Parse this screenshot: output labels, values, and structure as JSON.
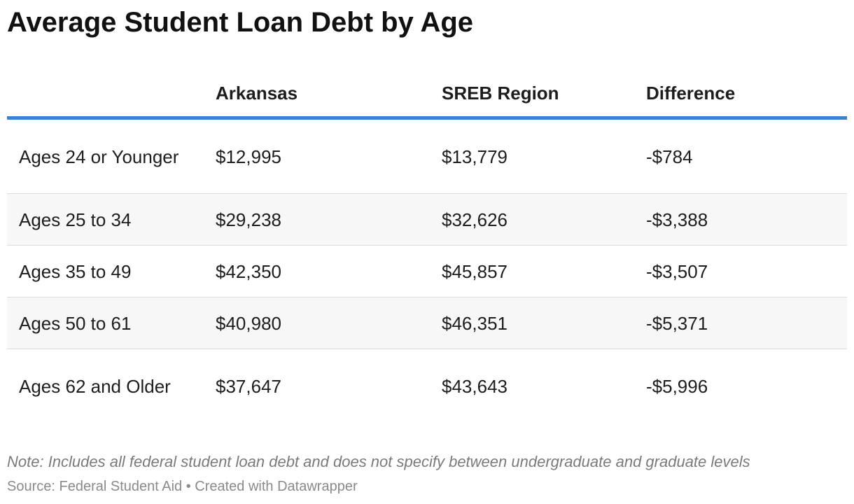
{
  "header": {
    "title": "Average Student Loan Debt by Age"
  },
  "table": {
    "columns": [
      "",
      "Arkansas",
      "SREB Region",
      "Difference"
    ],
    "rows": [
      [
        "Ages 24 or Younger",
        "$12,995",
        "$13,779",
        "-$784"
      ],
      [
        "Ages 25 to 34",
        "$29,238",
        "$32,626",
        "-$3,388"
      ],
      [
        "Ages 35 to 49",
        "$42,350",
        "$45,857",
        "-$3,507"
      ],
      [
        "Ages 50 to 61",
        "$40,980",
        "$46,351",
        "-$5,371"
      ],
      [
        "Ages 62 and Older",
        "$37,647",
        "$43,643",
        "-$5,996"
      ]
    ]
  },
  "footer": {
    "note": "Note: Includes all federal student loan debt and does not specify between undergraduate and graduate levels",
    "source": "Source: Federal Student Aid • Created with Datawrapper"
  }
}
